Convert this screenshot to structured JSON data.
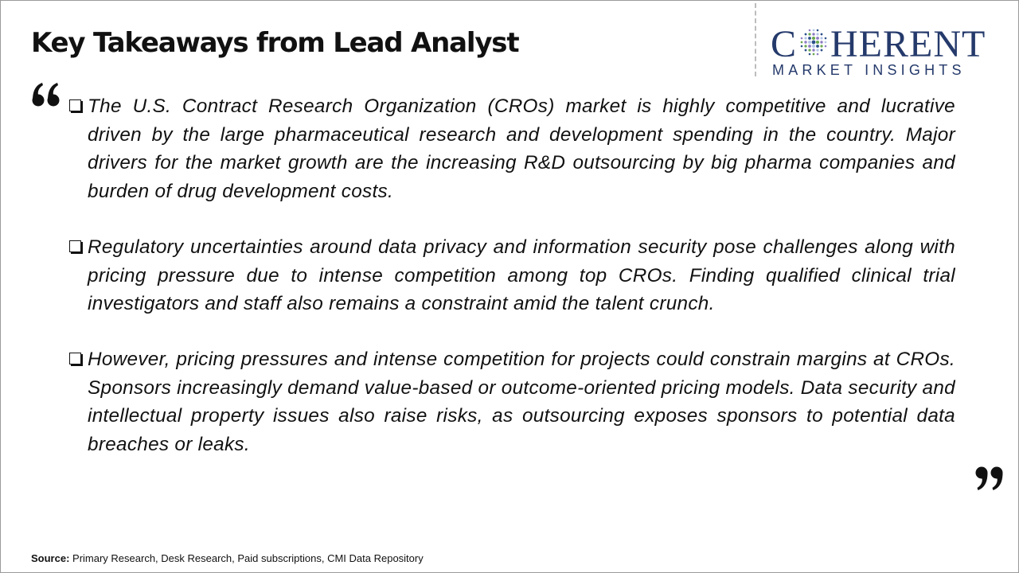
{
  "page": {
    "title": "Key Takeaways from Lead Analyst"
  },
  "logo": {
    "word_left": "C",
    "word_right": "HERENT",
    "tagline": "MARKET INSIGHTS",
    "color": "#253a6b",
    "dot_colors": [
      "#2d4f8a",
      "#6aa84f",
      "#8e7cc3",
      "#b4c7e7"
    ]
  },
  "quotes": {
    "open_icon": "quote-open-icon",
    "close_icon": "quote-close-icon"
  },
  "takeaways": [
    {
      "text": "The U.S. Contract Research Organization (CROs) market is highly competitive and lucrative driven by the large pharmaceutical research and development spending in the country. Major drivers for the market growth are the increasing R&D outsourcing by big pharma companies and burden of drug development costs."
    },
    {
      "text": "Regulatory uncertainties around data privacy and information security pose challenges along with pricing pressure due to intense competition among top CROs. Finding qualified clinical trial investigators and staff also remains a constraint amid the talent crunch."
    },
    {
      "text": "However, pricing pressures and intense competition for projects could constrain margins at CROs. Sponsors increasingly demand value-based or outcome-oriented pricing models. Data security and intellectual property issues also raise risks, as outsourcing exposes sponsors to potential data breaches or leaks."
    }
  ],
  "source": {
    "label": "Source:",
    "text": " Primary Research, Desk Research, Paid subscriptions, CMI Data Repository"
  }
}
